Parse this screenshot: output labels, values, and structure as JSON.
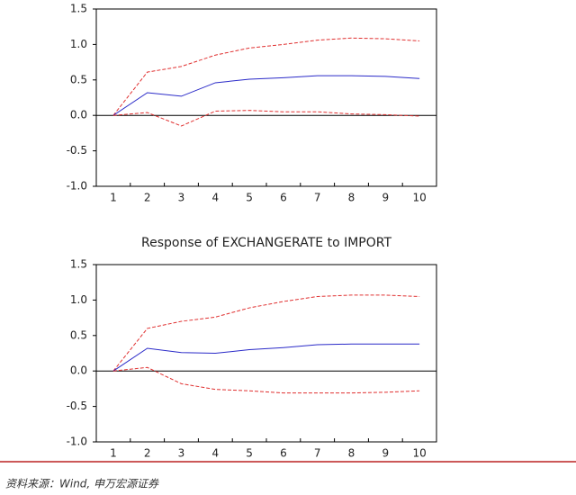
{
  "chart_data": [
    {
      "type": "line",
      "categories": [
        1,
        2,
        3,
        4,
        5,
        6,
        7,
        8,
        9,
        10
      ],
      "ylim": [
        -1.0,
        1.5
      ],
      "yticks": [
        {
          "value": -1.0,
          "label": "-1.0"
        },
        -0.5,
        {
          "value": 0.0,
          "label": "0.0"
        },
        0.5,
        {
          "value": 1.0,
          "label": "1.0"
        },
        1.5
      ],
      "series": [
        {
          "color": "#e03030",
          "dashed": true,
          "values": [
            0,
            0.61,
            0.69,
            0.85,
            0.95,
            1.0,
            1.06,
            1.09,
            1.08,
            1.05
          ]
        },
        {
          "color": "#2a2ac8",
          "dashed": false,
          "values": [
            0,
            0.32,
            0.27,
            0.46,
            0.51,
            0.53,
            0.56,
            0.56,
            0.55,
            0.52
          ]
        },
        {
          "color": "#e03030",
          "dashed": true,
          "values": [
            0,
            0.04,
            -0.15,
            0.06,
            0.07,
            0.05,
            0.05,
            0.02,
            0.01,
            -0.01
          ]
        }
      ]
    },
    {
      "type": "line",
      "title": "Response of EXCHANGERATE to IMPORT",
      "categories": [
        1,
        2,
        3,
        4,
        5,
        6,
        7,
        8,
        9,
        10
      ],
      "ylim": [
        -1.0,
        1.5
      ],
      "yticks": [
        {
          "value": -1.0,
          "label": "-1.0"
        },
        -0.5,
        {
          "value": 0.0,
          "label": "0.0"
        },
        0.5,
        {
          "value": 1.0,
          "label": "1.0"
        },
        1.5
      ],
      "series": [
        {
          "color": "#e03030",
          "dashed": true,
          "values": [
            0,
            0.6,
            0.7,
            0.76,
            0.89,
            0.98,
            1.05,
            1.07,
            1.07,
            1.05
          ]
        },
        {
          "color": "#2a2ac8",
          "dashed": false,
          "values": [
            0,
            0.32,
            0.26,
            0.25,
            0.3,
            0.33,
            0.37,
            0.38,
            0.38,
            0.38
          ]
        },
        {
          "color": "#e03030",
          "dashed": true,
          "values": [
            0,
            0.05,
            -0.18,
            -0.26,
            -0.28,
            -0.31,
            -0.31,
            -0.31,
            -0.3,
            -0.28
          ]
        }
      ]
    }
  ],
  "footer": {
    "source": "资料来源：Wind, 申万宏源证券"
  }
}
